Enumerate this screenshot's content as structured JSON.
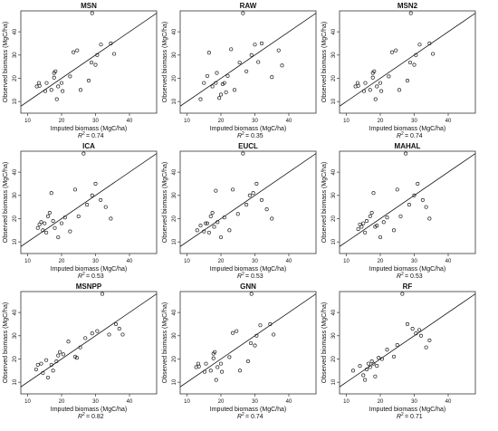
{
  "figure": {
    "xlabel": "Imputed biomass (MgC/ha)",
    "ylabel": "Observed biomass (MgC/ha)",
    "xlim": [
      8,
      48
    ],
    "ylim": [
      5,
      49
    ],
    "x_ticks": [
      10,
      20,
      30,
      40
    ],
    "y_ticks": [
      10,
      20,
      30,
      40
    ],
    "reference_line": "y = x",
    "marker": "open-circle"
  },
  "chart_data": [
    {
      "type": "scatter",
      "title": "MSN",
      "r2_label": "R",
      "r2_value": "= 0.74",
      "x": [
        12.7,
        13.5,
        13.3,
        15.2,
        15.6,
        17.0,
        17.8,
        17.8,
        18.2,
        18.6,
        19.0,
        20.0,
        20.3,
        22.5,
        23.5,
        24.6,
        25.6,
        28.0,
        28.8,
        29.0,
        30.0,
        30.5,
        31.6,
        34.5,
        35.5
      ],
      "y": [
        16.5,
        16.8,
        18.0,
        14.5,
        18.0,
        15.0,
        20.3,
        22.3,
        23.0,
        11.0,
        16.5,
        18.0,
        14.5,
        20.8,
        31.2,
        32.0,
        15.0,
        19.0,
        26.8,
        48.0,
        25.8,
        30.0,
        34.5,
        35.0,
        30.5
      ]
    },
    {
      "type": "scatter",
      "title": "RAW",
      "r2_label": "R",
      "r2_value": "= 0.35",
      "x": [
        14.0,
        15.0,
        16.0,
        16.5,
        17.5,
        18.5,
        18.8,
        19.5,
        20.0,
        20.5,
        21.0,
        21.5,
        22.0,
        23.0,
        24.0,
        25.5,
        26.5,
        27.5,
        29.0,
        30.0,
        31.0,
        32.0,
        35.0,
        37.0,
        38.0
      ],
      "y": [
        11.0,
        18.0,
        21.0,
        31.0,
        16.5,
        18.0,
        22.3,
        11.5,
        13.0,
        17.5,
        18.0,
        14.0,
        21.0,
        32.5,
        15.0,
        26.8,
        48.0,
        23.0,
        30.0,
        34.5,
        27.0,
        35.0,
        20.5,
        32.0,
        25.5
      ]
    },
    {
      "type": "scatter",
      "title": "MSN2",
      "r2_label": "R",
      "r2_value": "= 0.74",
      "x": [
        12.7,
        13.5,
        13.3,
        15.2,
        15.6,
        17.0,
        17.8,
        17.8,
        18.2,
        18.6,
        19.0,
        20.0,
        20.3,
        22.5,
        23.5,
        24.6,
        25.6,
        28.0,
        28.8,
        29.0,
        30.0,
        30.5,
        31.6,
        34.5,
        35.5
      ],
      "y": [
        16.5,
        16.8,
        18.0,
        14.5,
        18.0,
        15.0,
        20.3,
        22.3,
        23.0,
        11.0,
        16.5,
        18.0,
        14.5,
        20.8,
        31.2,
        32.0,
        15.0,
        19.0,
        26.8,
        48.0,
        25.8,
        30.0,
        34.5,
        35.0,
        30.5
      ]
    },
    {
      "type": "scatter",
      "title": "ICA",
      "r2_label": "R",
      "r2_value": "= 0.53",
      "x": [
        13.0,
        13.5,
        14.0,
        14.5,
        15.0,
        15.5,
        16.0,
        16.5,
        17.0,
        17.5,
        18.0,
        19.0,
        20.0,
        21.0,
        22.5,
        24.0,
        25.0,
        26.5,
        27.5,
        29.0,
        30.0,
        31.5,
        33.0,
        34.5
      ],
      "y": [
        16.0,
        17.5,
        18.5,
        15.0,
        18.0,
        14.0,
        21.0,
        22.5,
        31.0,
        19.0,
        16.0,
        12.0,
        18.0,
        20.5,
        14.5,
        32.5,
        21.0,
        48.0,
        26.0,
        30.0,
        35.0,
        28.0,
        25.0,
        20.0
      ]
    },
    {
      "type": "scatter",
      "title": "EUCL",
      "r2_label": "R",
      "r2_value": "= 0.53",
      "x": [
        13.0,
        14.0,
        15.0,
        15.5,
        16.0,
        16.5,
        17.0,
        17.5,
        18.0,
        18.5,
        19.0,
        20.0,
        21.0,
        22.5,
        23.5,
        25.0,
        26.5,
        27.5,
        28.5,
        29.5,
        30.5,
        32.0,
        33.5,
        35.0
      ],
      "y": [
        15.0,
        17.0,
        14.5,
        18.0,
        18.0,
        14.0,
        21.0,
        22.5,
        16.5,
        32.0,
        18.5,
        12.0,
        20.5,
        15.0,
        32.5,
        22.0,
        48.0,
        26.0,
        30.0,
        31.0,
        35.0,
        28.0,
        24.0,
        20.0
      ]
    },
    {
      "type": "scatter",
      "title": "MAHAL",
      "r2_label": "R",
      "r2_value": "= 0.53",
      "x": [
        13.5,
        14.0,
        14.5,
        15.0,
        15.5,
        16.0,
        17.0,
        17.5,
        18.0,
        18.5,
        19.0,
        20.0,
        21.0,
        22.0,
        24.0,
        25.0,
        26.0,
        27.5,
        28.5,
        30.0,
        31.0,
        32.5,
        33.5,
        34.5
      ],
      "y": [
        15.5,
        17.5,
        16.5,
        18.0,
        14.0,
        19.0,
        21.0,
        22.5,
        31.0,
        16.5,
        17.0,
        12.0,
        18.5,
        20.5,
        15.0,
        32.5,
        21.0,
        48.0,
        26.0,
        30.0,
        35.0,
        28.0,
        25.0,
        20.0
      ]
    },
    {
      "type": "scatter",
      "title": "MSNPP",
      "r2_label": "R",
      "r2_value": "= 0.82",
      "x": [
        12.5,
        13.0,
        14.0,
        14.5,
        15.5,
        16.0,
        17.0,
        17.5,
        18.5,
        19.0,
        19.5,
        20.5,
        22.0,
        24.0,
        24.5,
        25.5,
        27.0,
        29.0,
        30.5,
        32.0,
        34.0,
        36.0,
        37.0,
        38.0
      ],
      "y": [
        15.5,
        17.5,
        18.0,
        14.0,
        19.5,
        12.0,
        17.5,
        15.0,
        19.0,
        21.5,
        23.0,
        22.0,
        27.5,
        21.0,
        20.5,
        25.0,
        29.0,
        31.0,
        32.0,
        48.0,
        30.5,
        35.0,
        33.0,
        30.5
      ]
    },
    {
      "type": "scatter",
      "title": "GNN",
      "r2_label": "R",
      "r2_value": "= 0.74",
      "x": [
        12.7,
        13.5,
        13.3,
        15.2,
        15.6,
        17.0,
        17.8,
        17.8,
        18.2,
        18.6,
        19.0,
        20.0,
        20.3,
        22.5,
        23.5,
        24.6,
        25.6,
        28.0,
        28.8,
        29.0,
        30.0,
        30.5,
        31.6,
        34.5,
        35.5
      ],
      "y": [
        16.5,
        16.8,
        18.0,
        14.5,
        18.0,
        15.0,
        20.3,
        22.3,
        23.0,
        11.0,
        16.5,
        18.0,
        14.5,
        20.8,
        31.2,
        32.0,
        15.0,
        19.0,
        26.8,
        48.0,
        25.8,
        30.0,
        34.5,
        35.0,
        30.5
      ]
    },
    {
      "type": "scatter",
      "title": "RF",
      "r2_label": "R",
      "r2_value": "= 0.71",
      "x": [
        12.0,
        14.0,
        15.0,
        15.5,
        16.0,
        16.5,
        17.0,
        17.5,
        18.0,
        18.5,
        19.0,
        19.5,
        20.5,
        22.0,
        24.0,
        25.0,
        26.5,
        28.0,
        29.5,
        30.5,
        31.5,
        32.0,
        33.5,
        34.5
      ],
      "y": [
        15.0,
        17.0,
        13.0,
        11.0,
        15.5,
        18.0,
        16.5,
        19.0,
        18.0,
        12.5,
        17.0,
        20.5,
        20.0,
        24.0,
        21.0,
        26.0,
        48.0,
        35.0,
        33.0,
        31.0,
        32.5,
        30.0,
        25.0,
        28.0
      ]
    }
  ]
}
